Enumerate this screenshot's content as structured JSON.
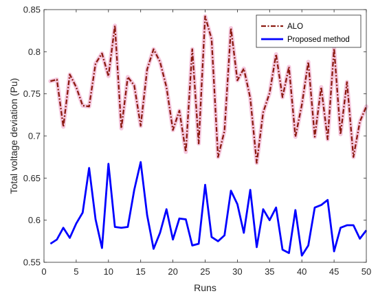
{
  "chart_data": {
    "type": "line",
    "title": "",
    "xlabel": "Runs",
    "ylabel": "Total voltage deviation (Pu)",
    "xlim": [
      0,
      50
    ],
    "ylim": [
      0.55,
      0.85
    ],
    "xticks": [
      "0",
      "5",
      "10",
      "15",
      "20",
      "25",
      "30",
      "35",
      "40",
      "45",
      "50"
    ],
    "yticks": [
      "0.55",
      "0.6",
      "0.65",
      "0.7",
      "0.75",
      "0.8",
      "0.85"
    ],
    "grid": false,
    "legend_position": "top-right",
    "x": [
      1,
      2,
      3,
      4,
      5,
      6,
      7,
      8,
      9,
      10,
      11,
      12,
      13,
      14,
      15,
      16,
      17,
      18,
      19,
      20,
      21,
      22,
      23,
      24,
      25,
      26,
      27,
      28,
      29,
      30,
      31,
      32,
      33,
      34,
      35,
      36,
      37,
      38,
      39,
      40,
      41,
      42,
      43,
      44,
      45,
      46,
      47,
      48,
      49,
      50
    ],
    "series": [
      {
        "name": "ALO",
        "color": "#8B1A10",
        "line_style": "dash-dot",
        "halo_color": "#F5C9DF",
        "values": [
          0.765,
          0.767,
          0.711,
          0.773,
          0.758,
          0.736,
          0.735,
          0.786,
          0.798,
          0.771,
          0.831,
          0.709,
          0.77,
          0.76,
          0.712,
          0.779,
          0.803,
          0.788,
          0.758,
          0.707,
          0.73,
          0.681,
          0.803,
          0.691,
          0.842,
          0.815,
          0.675,
          0.706,
          0.828,
          0.766,
          0.78,
          0.745,
          0.668,
          0.728,
          0.751,
          0.797,
          0.746,
          0.782,
          0.699,
          0.737,
          0.788,
          0.699,
          0.758,
          0.696,
          0.804,
          0.702,
          0.764,
          0.675,
          0.717,
          0.735
        ]
      },
      {
        "name": "Proposed method",
        "color": "#0000FF",
        "line_style": "solid",
        "values": [
          0.572,
          0.577,
          0.591,
          0.579,
          0.596,
          0.609,
          0.662,
          0.601,
          0.567,
          0.667,
          0.592,
          0.591,
          0.592,
          0.636,
          0.669,
          0.606,
          0.566,
          0.585,
          0.613,
          0.577,
          0.602,
          0.601,
          0.57,
          0.572,
          0.642,
          0.58,
          0.575,
          0.582,
          0.635,
          0.619,
          0.585,
          0.636,
          0.568,
          0.613,
          0.6,
          0.615,
          0.565,
          0.561,
          0.612,
          0.558,
          0.57,
          0.615,
          0.618,
          0.624,
          0.563,
          0.591,
          0.594,
          0.594,
          0.578,
          0.588
        ]
      }
    ]
  }
}
